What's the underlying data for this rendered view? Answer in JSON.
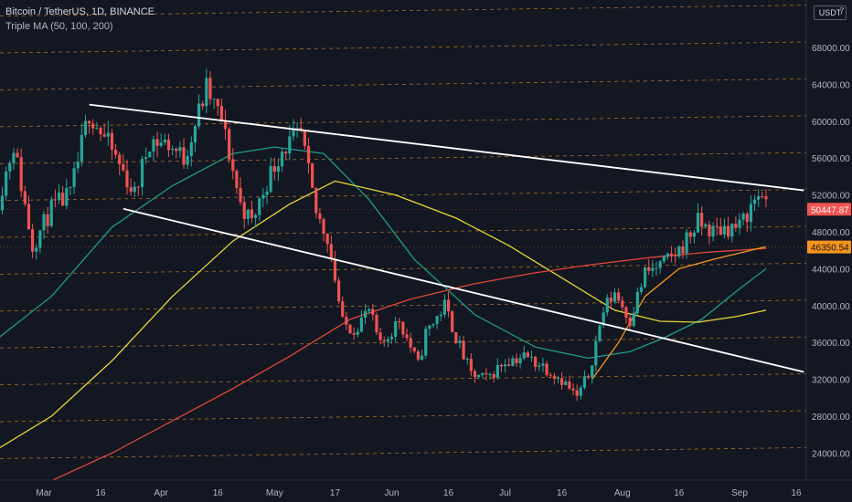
{
  "header": {
    "symbol": "Bitcoin / TetherUS, 1D, BINANCE",
    "indicator": "Triple MA (50, 100, 200)",
    "currency": "USDT"
  },
  "colors": {
    "background": "#131722",
    "up": "#26a69a",
    "down": "#ef5350",
    "ma50": "#1f9b8a",
    "ma100": "#e6d63a",
    "ma200": "#e0453b",
    "trendline": "#ffffff",
    "level_line": "#d98a1a",
    "last_price_tag": "#ef5350",
    "ma_price_tag": "#f7941d",
    "axis_text": "#b2b5be"
  },
  "chart_data": {
    "type": "candlestick",
    "title": "Bitcoin / TetherUS, 1D, BINANCE",
    "y_axis": {
      "ticks": [
        24000,
        28000,
        32000,
        36000,
        40000,
        44000,
        48000,
        52000,
        56000,
        60000,
        64000,
        68000
      ],
      "tick_labels": [
        "24000.00",
        "28000.00",
        "32000.00",
        "36000.00",
        "40000.00",
        "44000.00",
        "48000.00",
        "52000.00",
        "56000.00",
        "60000.00",
        "64000.00",
        "68000.00"
      ],
      "range": [
        21000,
        72000
      ],
      "top_partial_label": "7"
    },
    "x_axis": {
      "labels": [
        {
          "label": "Mar",
          "date": "2021-03-01"
        },
        {
          "label": "16",
          "date": "2021-03-16"
        },
        {
          "label": "Apr",
          "date": "2021-04-01"
        },
        {
          "label": "16",
          "date": "2021-04-16"
        },
        {
          "label": "May",
          "date": "2021-05-01"
        },
        {
          "label": "17",
          "date": "2021-05-17"
        },
        {
          "label": "Jun",
          "date": "2021-06-01"
        },
        {
          "label": "16",
          "date": "2021-06-16"
        },
        {
          "label": "Jul",
          "date": "2021-07-01"
        },
        {
          "label": "16",
          "date": "2021-07-16"
        },
        {
          "label": "Aug",
          "date": "2021-08-01"
        },
        {
          "label": "16",
          "date": "2021-08-16"
        },
        {
          "label": "Sep",
          "date": "2021-09-01"
        },
        {
          "label": "16",
          "date": "2021-09-16"
        }
      ]
    },
    "close_path": [
      {
        "date": "2021-02-17",
        "price": 51500
      },
      {
        "date": "2021-02-21",
        "price": 57500
      },
      {
        "date": "2021-02-26",
        "price": 46500
      },
      {
        "date": "2021-03-03",
        "price": 50500
      },
      {
        "date": "2021-03-08",
        "price": 52000
      },
      {
        "date": "2021-03-13",
        "price": 61000
      },
      {
        "date": "2021-03-18",
        "price": 57500
      },
      {
        "date": "2021-03-22",
        "price": 54500
      },
      {
        "date": "2021-03-25",
        "price": 52000
      },
      {
        "date": "2021-03-29",
        "price": 58000
      },
      {
        "date": "2021-04-03",
        "price": 57500
      },
      {
        "date": "2021-04-07",
        "price": 56000
      },
      {
        "date": "2021-04-13",
        "price": 63500
      },
      {
        "date": "2021-04-17",
        "price": 60000
      },
      {
        "date": "2021-04-19",
        "price": 56500
      },
      {
        "date": "2021-04-22",
        "price": 51000
      },
      {
        "date": "2021-04-25",
        "price": 49000
      },
      {
        "date": "2021-04-29",
        "price": 53500
      },
      {
        "date": "2021-05-03",
        "price": 57000
      },
      {
        "date": "2021-05-08",
        "price": 58500
      },
      {
        "date": "2021-05-12",
        "price": 50000
      },
      {
        "date": "2021-05-15",
        "price": 47500
      },
      {
        "date": "2021-05-17",
        "price": 43000
      },
      {
        "date": "2021-05-19",
        "price": 38000
      },
      {
        "date": "2021-05-22",
        "price": 37500
      },
      {
        "date": "2021-05-26",
        "price": 39500
      },
      {
        "date": "2021-05-29",
        "price": 35500
      },
      {
        "date": "2021-06-03",
        "price": 38500
      },
      {
        "date": "2021-06-08",
        "price": 33500
      },
      {
        "date": "2021-06-10",
        "price": 37000
      },
      {
        "date": "2021-06-15",
        "price": 40000
      },
      {
        "date": "2021-06-19",
        "price": 35500
      },
      {
        "date": "2021-06-22",
        "price": 32500
      },
      {
        "date": "2021-06-26",
        "price": 32000
      },
      {
        "date": "2021-07-01",
        "price": 34000
      },
      {
        "date": "2021-07-06",
        "price": 34500
      },
      {
        "date": "2021-07-11",
        "price": 33500
      },
      {
        "date": "2021-07-16",
        "price": 32000
      },
      {
        "date": "2021-07-20",
        "price": 30000
      },
      {
        "date": "2021-07-23",
        "price": 32500
      },
      {
        "date": "2021-07-27",
        "price": 39500
      },
      {
        "date": "2021-07-30",
        "price": 41500
      },
      {
        "date": "2021-08-03",
        "price": 38500
      },
      {
        "date": "2021-08-07",
        "price": 43500
      },
      {
        "date": "2021-08-12",
        "price": 44500
      },
      {
        "date": "2021-08-16",
        "price": 46000
      },
      {
        "date": "2021-08-21",
        "price": 49000
      },
      {
        "date": "2021-08-25",
        "price": 48000
      },
      {
        "date": "2021-08-28",
        "price": 48500
      },
      {
        "date": "2021-09-01",
        "price": 48500
      },
      {
        "date": "2021-09-05",
        "price": 51500
      },
      {
        "date": "2021-09-07",
        "price": 52500
      },
      {
        "date": "2021-09-08",
        "price": 50448
      }
    ],
    "series": [
      {
        "name": "MA 50",
        "color": "#1f9b8a",
        "points": [
          {
            "date": "2021-02-17",
            "price": 36500
          },
          {
            "date": "2021-03-03",
            "price": 41000
          },
          {
            "date": "2021-03-19",
            "price": 48500
          },
          {
            "date": "2021-04-04",
            "price": 53000
          },
          {
            "date": "2021-04-20",
            "price": 56500
          },
          {
            "date": "2021-05-01",
            "price": 57200
          },
          {
            "date": "2021-05-14",
            "price": 56500
          },
          {
            "date": "2021-05-26",
            "price": 51500
          },
          {
            "date": "2021-06-07",
            "price": 45000
          },
          {
            "date": "2021-06-23",
            "price": 39000
          },
          {
            "date": "2021-07-09",
            "price": 35500
          },
          {
            "date": "2021-07-23",
            "price": 34300
          },
          {
            "date": "2021-08-03",
            "price": 35000
          },
          {
            "date": "2021-08-12",
            "price": 36500
          },
          {
            "date": "2021-08-22",
            "price": 38500
          },
          {
            "date": "2021-08-31",
            "price": 41500
          },
          {
            "date": "2021-09-08",
            "price": 44000
          }
        ]
      },
      {
        "name": "MA 100",
        "color": "#e6d63a",
        "points": [
          {
            "date": "2021-02-17",
            "price": 24500
          },
          {
            "date": "2021-03-03",
            "price": 28000
          },
          {
            "date": "2021-03-19",
            "price": 34000
          },
          {
            "date": "2021-04-04",
            "price": 41000
          },
          {
            "date": "2021-04-20",
            "price": 47000
          },
          {
            "date": "2021-05-05",
            "price": 51000
          },
          {
            "date": "2021-05-17",
            "price": 53500
          },
          {
            "date": "2021-06-02",
            "price": 52000
          },
          {
            "date": "2021-06-18",
            "price": 49500
          },
          {
            "date": "2021-07-02",
            "price": 46500
          },
          {
            "date": "2021-07-18",
            "price": 42500
          },
          {
            "date": "2021-07-30",
            "price": 39500
          },
          {
            "date": "2021-08-11",
            "price": 38300
          },
          {
            "date": "2021-08-21",
            "price": 38200
          },
          {
            "date": "2021-08-31",
            "price": 38800
          },
          {
            "date": "2021-09-08",
            "price": 39500
          }
        ]
      },
      {
        "name": "MA 200",
        "color": "#e0453b",
        "points": [
          {
            "date": "2021-02-17",
            "price": 19200
          },
          {
            "date": "2021-03-03",
            "price": 21000
          },
          {
            "date": "2021-03-19",
            "price": 24000
          },
          {
            "date": "2021-04-04",
            "price": 27500
          },
          {
            "date": "2021-04-20",
            "price": 31000
          },
          {
            "date": "2021-05-05",
            "price": 34500
          },
          {
            "date": "2021-05-21",
            "price": 38500
          },
          {
            "date": "2021-06-06",
            "price": 40700
          },
          {
            "date": "2021-06-22",
            "price": 42300
          },
          {
            "date": "2021-07-08",
            "price": 43500
          },
          {
            "date": "2021-07-23",
            "price": 44400
          },
          {
            "date": "2021-08-08",
            "price": 45200
          },
          {
            "date": "2021-08-24",
            "price": 45800
          },
          {
            "date": "2021-09-08",
            "price": 46200
          }
        ]
      },
      {
        "name": "MA 50 (secondary)",
        "color": "#f7941d",
        "points": [
          {
            "date": "2021-07-24",
            "price": 32000
          },
          {
            "date": "2021-07-31",
            "price": 36000
          },
          {
            "date": "2021-08-07",
            "price": 41000
          },
          {
            "date": "2021-08-16",
            "price": 44000
          },
          {
            "date": "2021-08-25",
            "price": 45000
          },
          {
            "date": "2021-09-08",
            "price": 46400
          }
        ]
      }
    ],
    "trendlines": [
      {
        "name": "upper",
        "from": {
          "date": "2021-03-13",
          "price": 61800
        },
        "to": {
          "date": "2021-09-18",
          "price": 52500
        }
      },
      {
        "name": "lower",
        "from": {
          "date": "2021-03-22",
          "price": 50500
        },
        "to": {
          "date": "2021-09-18",
          "price": 32800
        }
      }
    ],
    "price_labels": [
      {
        "label": "50447.87",
        "value": 50447.87,
        "color": "#ef5350"
      },
      {
        "label": "46350.54",
        "value": 46350.54,
        "color": "#f7941d"
      }
    ],
    "grid": false,
    "legend": "top-left"
  }
}
